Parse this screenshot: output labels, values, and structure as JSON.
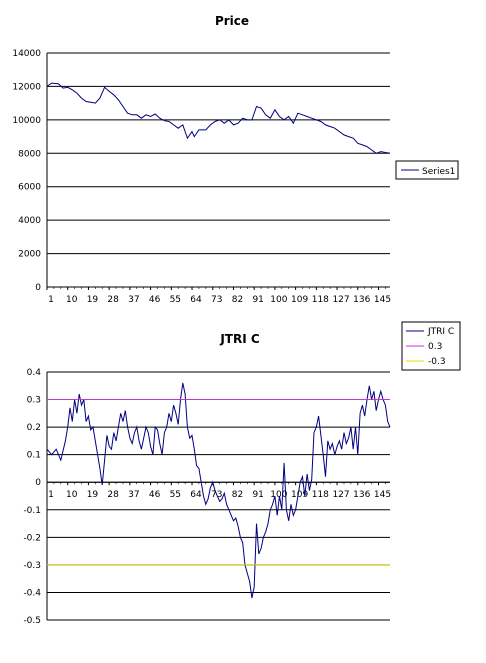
{
  "chart_data": [
    {
      "type": "line",
      "title": "Price",
      "xlabel": "",
      "ylabel": "",
      "ylim": [
        0,
        14000
      ],
      "yticks": [
        0,
        2000,
        4000,
        6000,
        8000,
        10000,
        12000,
        14000
      ],
      "xticks": [
        1,
        10,
        19,
        28,
        37,
        46,
        55,
        64,
        73,
        82,
        91,
        100,
        109,
        118,
        127,
        136,
        145
      ],
      "xlim": [
        1,
        150
      ],
      "grid": "horizontal",
      "legend_position": "right",
      "series": [
        {
          "name": "Series1",
          "color": "#000080",
          "points": [
            [
              1,
              12000
            ],
            [
              3,
              12200
            ],
            [
              6,
              12150
            ],
            [
              8,
              11900
            ],
            [
              10,
              11950
            ],
            [
              12,
              11800
            ],
            [
              14,
              11600
            ],
            [
              16,
              11300
            ],
            [
              18,
              11100
            ],
            [
              20,
              11050
            ],
            [
              22,
              11000
            ],
            [
              24,
              11300
            ],
            [
              26,
              11950
            ],
            [
              28,
              11700
            ],
            [
              30,
              11500
            ],
            [
              32,
              11200
            ],
            [
              34,
              10800
            ],
            [
              36,
              10400
            ],
            [
              38,
              10300
            ],
            [
              40,
              10300
            ],
            [
              42,
              10100
            ],
            [
              44,
              10300
            ],
            [
              46,
              10200
            ],
            [
              48,
              10350
            ],
            [
              50,
              10100
            ],
            [
              52,
              9950
            ],
            [
              54,
              9900
            ],
            [
              56,
              9700
            ],
            [
              58,
              9500
            ],
            [
              60,
              9700
            ],
            [
              62,
              8900
            ],
            [
              64,
              9300
            ],
            [
              65,
              9000
            ],
            [
              67,
              9400
            ],
            [
              70,
              9400
            ],
            [
              72,
              9700
            ],
            [
              74,
              9900
            ],
            [
              76,
              10000
            ],
            [
              78,
              9800
            ],
            [
              80,
              10000
            ],
            [
              82,
              9700
            ],
            [
              84,
              9800
            ],
            [
              86,
              10100
            ],
            [
              88,
              10000
            ],
            [
              90,
              10000
            ],
            [
              92,
              10800
            ],
            [
              94,
              10700
            ],
            [
              96,
              10300
            ],
            [
              98,
              10100
            ],
            [
              100,
              10600
            ],
            [
              102,
              10200
            ],
            [
              104,
              10000
            ],
            [
              106,
              10200
            ],
            [
              108,
              9800
            ],
            [
              110,
              10400
            ],
            [
              112,
              10300
            ],
            [
              114,
              10200
            ],
            [
              116,
              10100
            ],
            [
              118,
              10000
            ],
            [
              120,
              9900
            ],
            [
              122,
              9700
            ],
            [
              124,
              9600
            ],
            [
              126,
              9500
            ],
            [
              128,
              9300
            ],
            [
              130,
              9100
            ],
            [
              132,
              9000
            ],
            [
              134,
              8900
            ],
            [
              136,
              8600
            ],
            [
              138,
              8500
            ],
            [
              140,
              8400
            ],
            [
              142,
              8200
            ],
            [
              144,
              8000
            ],
            [
              146,
              8100
            ],
            [
              148,
              8050
            ],
            [
              150,
              8000
            ]
          ]
        }
      ]
    },
    {
      "type": "line",
      "title": "JTRI C",
      "xlabel": "",
      "ylabel": "",
      "ylim": [
        -0.5,
        0.4
      ],
      "yticks": [
        -0.5,
        -0.4,
        -0.3,
        -0.2,
        -0.1,
        0,
        0.1,
        0.2,
        0.3,
        0.4
      ],
      "xticks": [
        1,
        10,
        19,
        28,
        37,
        46,
        55,
        64,
        73,
        82,
        91,
        100,
        109,
        118,
        127,
        136,
        145
      ],
      "xlim": [
        1,
        150
      ],
      "grid": "horizontal",
      "legend_position": "top-right",
      "series": [
        {
          "name": "JTRI C",
          "color": "#000080",
          "points": [
            [
              1,
              0.12
            ],
            [
              3,
              0.1
            ],
            [
              5,
              0.12
            ],
            [
              7,
              0.08
            ],
            [
              9,
              0.15
            ],
            [
              10,
              0.2
            ],
            [
              11,
              0.27
            ],
            [
              12,
              0.22
            ],
            [
              13,
              0.3
            ],
            [
              14,
              0.25
            ],
            [
              15,
              0.32
            ],
            [
              16,
              0.28
            ],
            [
              17,
              0.3
            ],
            [
              18,
              0.22
            ],
            [
              19,
              0.24
            ],
            [
              20,
              0.19
            ],
            [
              21,
              0.2
            ],
            [
              22,
              0.15
            ],
            [
              23,
              0.1
            ],
            [
              24,
              0.05
            ],
            [
              25,
              -0.01
            ],
            [
              26,
              0.08
            ],
            [
              27,
              0.17
            ],
            [
              28,
              0.13
            ],
            [
              29,
              0.12
            ],
            [
              30,
              0.18
            ],
            [
              31,
              0.15
            ],
            [
              32,
              0.2
            ],
            [
              33,
              0.25
            ],
            [
              34,
              0.22
            ],
            [
              35,
              0.26
            ],
            [
              36,
              0.2
            ],
            [
              37,
              0.16
            ],
            [
              38,
              0.14
            ],
            [
              39,
              0.18
            ],
            [
              40,
              0.2
            ],
            [
              41,
              0.15
            ],
            [
              42,
              0.12
            ],
            [
              43,
              0.16
            ],
            [
              44,
              0.2
            ],
            [
              45,
              0.18
            ],
            [
              46,
              0.13
            ],
            [
              47,
              0.1
            ],
            [
              48,
              0.2
            ],
            [
              49,
              0.19
            ],
            [
              50,
              0.14
            ],
            [
              51,
              0.1
            ],
            [
              52,
              0.18
            ],
            [
              53,
              0.2
            ],
            [
              54,
              0.25
            ],
            [
              55,
              0.22
            ],
            [
              56,
              0.28
            ],
            [
              57,
              0.25
            ],
            [
              58,
              0.21
            ],
            [
              59,
              0.3
            ],
            [
              60,
              0.36
            ],
            [
              61,
              0.32
            ],
            [
              62,
              0.2
            ],
            [
              63,
              0.16
            ],
            [
              64,
              0.17
            ],
            [
              65,
              0.12
            ],
            [
              66,
              0.06
            ],
            [
              67,
              0.05
            ],
            [
              68,
              0.0
            ],
            [
              69,
              -0.05
            ],
            [
              70,
              -0.08
            ],
            [
              71,
              -0.06
            ],
            [
              72,
              -0.02
            ],
            [
              73,
              0.0
            ],
            [
              74,
              -0.03
            ],
            [
              75,
              -0.05
            ],
            [
              76,
              -0.07
            ],
            [
              77,
              -0.06
            ],
            [
              78,
              -0.04
            ],
            [
              79,
              -0.08
            ],
            [
              80,
              -0.1
            ],
            [
              81,
              -0.12
            ],
            [
              82,
              -0.14
            ],
            [
              83,
              -0.13
            ],
            [
              84,
              -0.16
            ],
            [
              85,
              -0.2
            ],
            [
              86,
              -0.22
            ],
            [
              87,
              -0.3
            ],
            [
              88,
              -0.33
            ],
            [
              89,
              -0.36
            ],
            [
              90,
              -0.42
            ],
            [
              91,
              -0.38
            ],
            [
              92,
              -0.15
            ],
            [
              93,
              -0.26
            ],
            [
              94,
              -0.24
            ],
            [
              95,
              -0.2
            ],
            [
              96,
              -0.18
            ],
            [
              97,
              -0.15
            ],
            [
              98,
              -0.1
            ],
            [
              99,
              -0.08
            ],
            [
              100,
              -0.05
            ],
            [
              101,
              -0.12
            ],
            [
              102,
              -0.05
            ],
            [
              103,
              -0.1
            ],
            [
              104,
              0.07
            ],
            [
              105,
              -0.1
            ],
            [
              106,
              -0.14
            ],
            [
              107,
              -0.08
            ],
            [
              108,
              -0.12
            ],
            [
              109,
              -0.1
            ],
            [
              110,
              -0.05
            ],
            [
              111,
              0.0
            ],
            [
              112,
              0.02
            ],
            [
              113,
              -0.05
            ],
            [
              114,
              0.03
            ],
            [
              115,
              -0.03
            ],
            [
              116,
              0.01
            ],
            [
              117,
              0.18
            ],
            [
              118,
              0.2
            ],
            [
              119,
              0.24
            ],
            [
              120,
              0.17
            ],
            [
              121,
              0.1
            ],
            [
              122,
              0.02
            ],
            [
              123,
              0.15
            ],
            [
              124,
              0.12
            ],
            [
              125,
              0.14
            ],
            [
              126,
              0.1
            ],
            [
              127,
              0.13
            ],
            [
              128,
              0.15
            ],
            [
              129,
              0.12
            ],
            [
              130,
              0.18
            ],
            [
              131,
              0.14
            ],
            [
              132,
              0.16
            ],
            [
              133,
              0.2
            ],
            [
              134,
              0.12
            ],
            [
              135,
              0.2
            ],
            [
              136,
              0.1
            ],
            [
              137,
              0.25
            ],
            [
              138,
              0.28
            ],
            [
              139,
              0.24
            ],
            [
              140,
              0.3
            ],
            [
              141,
              0.35
            ],
            [
              142,
              0.3
            ],
            [
              143,
              0.33
            ],
            [
              144,
              0.26
            ],
            [
              145,
              0.3
            ],
            [
              146,
              0.33
            ],
            [
              147,
              0.3
            ],
            [
              148,
              0.28
            ],
            [
              149,
              0.22
            ],
            [
              150,
              0.2
            ]
          ]
        },
        {
          "name": "0.3",
          "color": "#cc33cc",
          "constant": 0.3
        },
        {
          "name": "-0.3",
          "color": "#e8e000",
          "constant": -0.3
        }
      ]
    }
  ]
}
